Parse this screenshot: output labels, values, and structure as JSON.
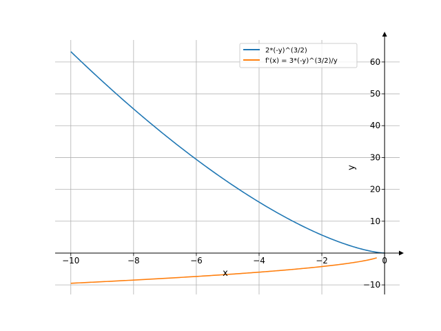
{
  "chart_data": {
    "type": "line",
    "title": "",
    "xlabel": "x",
    "ylabel": "y",
    "xlim": [
      -10.5,
      0.48
    ],
    "ylim": [
      -13,
      66.9
    ],
    "grid": true,
    "xticks": [
      -10,
      -8,
      -6,
      -4,
      -2,
      0
    ],
    "xtick_labels": [
      "−10",
      "−8",
      "−6",
      "−4",
      "−2",
      "0"
    ],
    "yticks": [
      -10,
      0,
      10,
      20,
      30,
      40,
      50,
      60
    ],
    "ytick_labels": [
      "−10",
      "0",
      "10",
      "20",
      "30",
      "40",
      "50",
      "60"
    ],
    "legend_position": "top-right",
    "series": [
      {
        "name": "2*(-y)^(3/2)",
        "color": "#1f77b4",
        "expr": "2*(-x)^1.5",
        "x_range": [
          -10,
          0
        ]
      },
      {
        "name": "f'(x) = 3*(-y)^(3/2)/y",
        "color": "#ff7f0e",
        "expr": "-3*sqrt(-x)",
        "x_range": [
          -10,
          -0.25
        ]
      }
    ]
  }
}
